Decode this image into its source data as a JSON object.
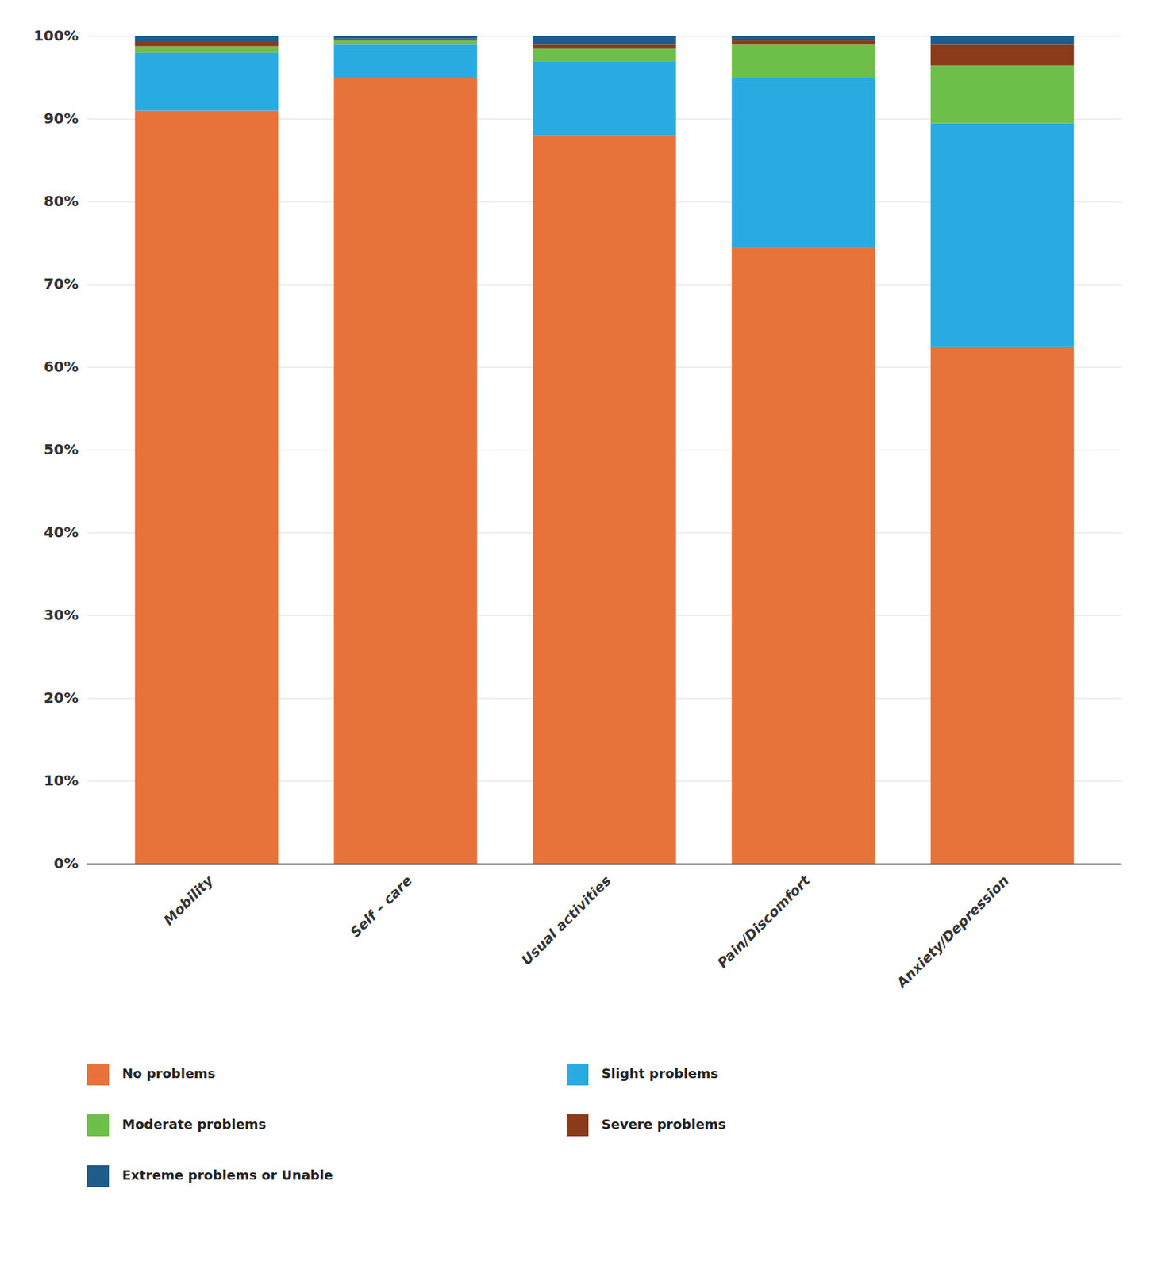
{
  "chart_data": {
    "type": "bar",
    "stacked": true,
    "categories": [
      "Mobility",
      "Self – care",
      "Usual activities",
      "Pain/Discomfort",
      "Anxiety/Depression"
    ],
    "series": [
      {
        "name": "No problems",
        "color": "#E8733A",
        "values": [
          91.0,
          95.0,
          88.0,
          74.5,
          62.5
        ]
      },
      {
        "name": "Slight problems",
        "color": "#29ABE2",
        "values": [
          7.0,
          4.0,
          9.0,
          20.5,
          27.0
        ]
      },
      {
        "name": "Moderate problems",
        "color": "#6DBF4A",
        "values": [
          0.8,
          0.5,
          1.5,
          4.0,
          7.0
        ]
      },
      {
        "name": "Severe problems",
        "color": "#8B3A1A",
        "values": [
          0.5,
          0.2,
          0.5,
          0.5,
          2.5
        ]
      },
      {
        "name": "Extreme problems or Unable",
        "color": "#1F5C8B",
        "values": [
          0.7,
          0.3,
          1.0,
          0.5,
          1.0
        ]
      }
    ],
    "ylim": [
      0,
      100
    ],
    "yticks": [
      {
        "value": 0,
        "label": "0%"
      },
      {
        "value": 10,
        "label": "10%"
      },
      {
        "value": 20,
        "label": "20%"
      },
      {
        "value": 30,
        "label": "30%"
      },
      {
        "value": 40,
        "label": "40%"
      },
      {
        "value": 50,
        "label": "50%"
      },
      {
        "value": 60,
        "label": "60%"
      },
      {
        "value": 70,
        "label": "70%"
      },
      {
        "value": 80,
        "label": "80%"
      },
      {
        "value": 90,
        "label": "90%"
      },
      {
        "value": 100,
        "label": "100%"
      }
    ],
    "grid": true,
    "legend": "bottom"
  }
}
